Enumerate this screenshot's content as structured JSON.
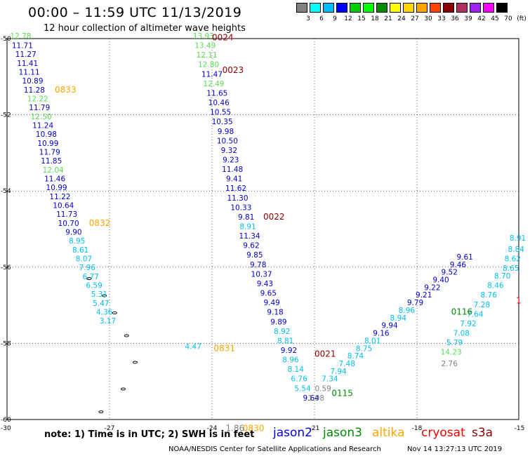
{
  "title": "00:00 – 11:59 UTC 11/13/2019",
  "subtitle": "12 hour collection of altimeter wave heights",
  "colorbar": {
    "unit": "(ft)",
    "labels": [
      "3",
      "6",
      "9",
      "12",
      "15",
      "18",
      "21",
      "24",
      "27",
      "30",
      "33",
      "36",
      "39",
      "42",
      "45",
      "70"
    ],
    "colors": [
      "#808080",
      "#00ffff",
      "#00bfff",
      "#0000ff",
      "#00cd00",
      "#00ff00",
      "#008b00",
      "#ffff00",
      "#ffd700",
      "#ffa500",
      "#ff4500",
      "#8b0000",
      "#b03060",
      "#a020f0",
      "#ff00ff",
      "#000000"
    ]
  },
  "note": "note:  1) Time is in UTC;  2) SWH is in feet",
  "satellites": [
    {
      "name": "jason2",
      "color": "#0000ee"
    },
    {
      "name": "jason3",
      "color": "#008b00"
    },
    {
      "name": "altika",
      "color": "#ffa500"
    },
    {
      "name": "cryosat",
      "color": "#ee0000"
    },
    {
      "name": "s3a",
      "color": "#8b0000"
    }
  ],
  "credit": "NOAA/NESDIS Center for Satellite Applications and Research",
  "timestamp": "Nov 14 13:27:13 UTC 2019",
  "chart_data": {
    "type": "scatter",
    "xlim": [
      -30,
      -15
    ],
    "ylim": [
      -60,
      -50
    ],
    "x_ticks": [
      "-27",
      "-24",
      "-21",
      "-18",
      "-15"
    ],
    "y_ticks": [
      "-50",
      "-52",
      "-54",
      "-56",
      "-58",
      "-60"
    ],
    "corner_label": "-30",
    "grid": true,
    "coast_color": "#000000",
    "series": [
      {
        "name": "jason2",
        "points": [
          {
            "x": -29.6,
            "y": -50.0,
            "v": 12.78,
            "c": "#55dd55"
          },
          {
            "x": -29.55,
            "y": -50.25,
            "v": 11.71,
            "c": "#0000cc"
          },
          {
            "x": -29.45,
            "y": -50.48,
            "v": 11.27,
            "c": "#0000cc"
          },
          {
            "x": -29.4,
            "y": -50.72,
            "v": 11.41,
            "c": "#0000cc"
          },
          {
            "x": -29.35,
            "y": -50.95,
            "v": 11.11,
            "c": "#0000cc"
          },
          {
            "x": -29.25,
            "y": -51.18,
            "v": 10.89,
            "c": "#0000cc"
          },
          {
            "x": -29.2,
            "y": -51.42,
            "v": 11.28,
            "c": "#0000cc"
          },
          {
            "x": -29.1,
            "y": -51.65,
            "v": 12.22,
            "c": "#55dd55"
          },
          {
            "x": -29.05,
            "y": -51.88,
            "v": 11.79,
            "c": "#0000cc"
          },
          {
            "x": -29.0,
            "y": -52.12,
            "v": 12.5,
            "c": "#55dd55"
          },
          {
            "x": -28.95,
            "y": -52.35,
            "v": 11.24,
            "c": "#0000cc"
          },
          {
            "x": -28.85,
            "y": -52.58,
            "v": 10.98,
            "c": "#0000cc"
          },
          {
            "x": -28.8,
            "y": -52.82,
            "v": 10.99,
            "c": "#0000cc"
          },
          {
            "x": -28.75,
            "y": -53.05,
            "v": 11.79,
            "c": "#0000cc"
          },
          {
            "x": -28.7,
            "y": -53.28,
            "v": 11.85,
            "c": "#0000cc"
          },
          {
            "x": -28.65,
            "y": -53.52,
            "v": 12.04,
            "c": "#55dd55"
          },
          {
            "x": -28.6,
            "y": -53.75,
            "v": 11.46,
            "c": "#0000cc"
          },
          {
            "x": -28.55,
            "y": -53.98,
            "v": 10.99,
            "c": "#0000cc"
          },
          {
            "x": -28.45,
            "y": -54.22,
            "v": 11.22,
            "c": "#0000cc"
          },
          {
            "x": -28.35,
            "y": -54.45,
            "v": 10.64,
            "c": "#0000cc"
          },
          {
            "x": -28.25,
            "y": -54.68,
            "v": 11.73,
            "c": "#0000cc"
          },
          {
            "x": -28.2,
            "y": -54.92,
            "v": 10.7,
            "c": "#0000cc"
          },
          {
            "x": -28.05,
            "y": -55.15,
            "v": 9.9,
            "c": "#0000cc"
          },
          {
            "x": -27.95,
            "y": -55.38,
            "v": 8.95,
            "c": "#00bfee"
          },
          {
            "x": -27.85,
            "y": -55.62,
            "v": 8.61,
            "c": "#00bfee"
          },
          {
            "x": -27.75,
            "y": -55.85,
            "v": 8.07,
            "c": "#00bfee"
          },
          {
            "x": -27.65,
            "y": -56.08,
            "v": 7.96,
            "c": "#00bfee"
          },
          {
            "x": -27.55,
            "y": -56.32,
            "v": 6.77,
            "c": "#00bfee"
          },
          {
            "x": -27.45,
            "y": -56.55,
            "v": 6.59,
            "c": "#00bfee"
          },
          {
            "x": -27.3,
            "y": -56.78,
            "v": 5.31,
            "c": "#00bfee"
          },
          {
            "x": -27.25,
            "y": -57.02,
            "v": 5.47,
            "c": "#00bfee"
          },
          {
            "x": -27.15,
            "y": -57.25,
            "v": 4.36,
            "c": "#00bfee"
          },
          {
            "x": -27.05,
            "y": -57.48,
            "v": 3.17,
            "c": "#00bfee"
          },
          {
            "x": -24.55,
            "y": -58.15,
            "v": 4.47,
            "c": "#00bfee"
          },
          {
            "x": -24.25,
            "y": -50.0,
            "v": 13.93,
            "c": "#55dd55"
          },
          {
            "x": -24.2,
            "y": -50.25,
            "v": 13.49,
            "c": "#55dd55"
          },
          {
            "x": -24.15,
            "y": -50.5,
            "v": 12.11,
            "c": "#55dd55"
          },
          {
            "x": -24.1,
            "y": -50.75,
            "v": 12.8,
            "c": "#55dd55"
          },
          {
            "x": -24.0,
            "y": -51.0,
            "v": 11.47,
            "c": "#0000cc"
          },
          {
            "x": -23.95,
            "y": -51.25,
            "v": 12.49,
            "c": "#55dd55"
          },
          {
            "x": -23.85,
            "y": -51.5,
            "v": 11.65,
            "c": "#0000cc"
          },
          {
            "x": -23.8,
            "y": -51.75,
            "v": 10.46,
            "c": "#0000cc"
          },
          {
            "x": -23.75,
            "y": -52.0,
            "v": 10.55,
            "c": "#0000cc"
          },
          {
            "x": -23.7,
            "y": -52.25,
            "v": 10.35,
            "c": "#0000cc"
          },
          {
            "x": -23.6,
            "y": -52.5,
            "v": 9.98,
            "c": "#0000cc"
          },
          {
            "x": -23.55,
            "y": -52.75,
            "v": 10.5,
            "c": "#0000cc"
          },
          {
            "x": -23.5,
            "y": -53.0,
            "v": 9.32,
            "c": "#0000cc"
          },
          {
            "x": -23.45,
            "y": -53.25,
            "v": 9.23,
            "c": "#0000cc"
          },
          {
            "x": -23.4,
            "y": -53.5,
            "v": 11.48,
            "c": "#0000cc"
          },
          {
            "x": -23.35,
            "y": -53.75,
            "v": 9.41,
            "c": "#0000cc"
          },
          {
            "x": -23.3,
            "y": -54.0,
            "v": 11.62,
            "c": "#0000cc"
          },
          {
            "x": -23.25,
            "y": -54.25,
            "v": 11.3,
            "c": "#0000cc"
          },
          {
            "x": -23.15,
            "y": -54.5,
            "v": 10.33,
            "c": "#0000cc"
          },
          {
            "x": -23.0,
            "y": -54.75,
            "v": 9.81,
            "c": "#0000cc"
          },
          {
            "x": -22.95,
            "y": -55.0,
            "v": 8.91,
            "c": "#00bfee"
          },
          {
            "x": -22.9,
            "y": -55.25,
            "v": 11.34,
            "c": "#0000cc"
          },
          {
            "x": -22.85,
            "y": -55.5,
            "v": 9.62,
            "c": "#0000cc"
          },
          {
            "x": -22.75,
            "y": -55.75,
            "v": 9.85,
            "c": "#0000cc"
          },
          {
            "x": -22.65,
            "y": -56.0,
            "v": 9.78,
            "c": "#0000cc"
          },
          {
            "x": -22.55,
            "y": -56.25,
            "v": 10.37,
            "c": "#0000cc"
          },
          {
            "x": -22.45,
            "y": -56.5,
            "v": 9.43,
            "c": "#0000cc"
          },
          {
            "x": -22.35,
            "y": -56.75,
            "v": 9.65,
            "c": "#0000cc"
          },
          {
            "x": -22.25,
            "y": -57.0,
            "v": 9.49,
            "c": "#0000cc"
          },
          {
            "x": -22.15,
            "y": -57.25,
            "v": 9.18,
            "c": "#0000cc"
          },
          {
            "x": -22.05,
            "y": -57.5,
            "v": 9.89,
            "c": "#0000cc"
          },
          {
            "x": -21.95,
            "y": -57.75,
            "v": 8.92,
            "c": "#00bfee"
          },
          {
            "x": -21.85,
            "y": -58.0,
            "v": 8.81,
            "c": "#00bfee"
          },
          {
            "x": -21.75,
            "y": -58.25,
            "v": 9.92,
            "c": "#0000cc"
          },
          {
            "x": -21.7,
            "y": -58.5,
            "v": 8.96,
            "c": "#00bfee"
          },
          {
            "x": -21.55,
            "y": -58.75,
            "v": 8.14,
            "c": "#00bfee"
          },
          {
            "x": -21.45,
            "y": -59.0,
            "v": 6.76,
            "c": "#00bfee"
          },
          {
            "x": -21.35,
            "y": -59.25,
            "v": 5.54,
            "c": "#00bfee"
          },
          {
            "x": -21.1,
            "y": -59.5,
            "v": 9.64,
            "c": "#0000cc"
          }
        ]
      },
      {
        "name": "jason3",
        "points": [
          {
            "x": -20.75,
            "y": -59.25,
            "v": 0.59,
            "c": "#808080"
          },
          {
            "x": -20.95,
            "y": -59.5,
            "v": 1.98,
            "c": "#808080"
          },
          {
            "x": -20.55,
            "y": -59.0,
            "v": 7.34,
            "c": "#00bfee"
          },
          {
            "x": -20.3,
            "y": -58.8,
            "v": 7.94,
            "c": "#00bfee"
          },
          {
            "x": -20.05,
            "y": -58.6,
            "v": 7.48,
            "c": "#00bfee"
          },
          {
            "x": -19.8,
            "y": -58.4,
            "v": 8.74,
            "c": "#00bfee"
          },
          {
            "x": -19.55,
            "y": -58.2,
            "v": 8.75,
            "c": "#00bfee"
          },
          {
            "x": -19.3,
            "y": -58.0,
            "v": 8.01,
            "c": "#00bfee"
          },
          {
            "x": -19.05,
            "y": -57.8,
            "v": 9.16,
            "c": "#0000cc"
          },
          {
            "x": -18.8,
            "y": -57.6,
            "v": 9.94,
            "c": "#0000cc"
          },
          {
            "x": -18.55,
            "y": -57.4,
            "v": 8.94,
            "c": "#00bfee"
          },
          {
            "x": -18.3,
            "y": -57.2,
            "v": 8.96,
            "c": "#00bfee"
          },
          {
            "x": -18.05,
            "y": -57.0,
            "v": 9.79,
            "c": "#0000cc"
          },
          {
            "x": -17.8,
            "y": -56.8,
            "v": 9.21,
            "c": "#0000cc"
          },
          {
            "x": -17.55,
            "y": -56.6,
            "v": 9.22,
            "c": "#0000cc"
          },
          {
            "x": -17.3,
            "y": -56.4,
            "v": 9.4,
            "c": "#0000cc"
          },
          {
            "x": -17.05,
            "y": -56.2,
            "v": 9.52,
            "c": "#0000cc"
          },
          {
            "x": -16.8,
            "y": -56.0,
            "v": 9.46,
            "c": "#0000cc"
          },
          {
            "x": -16.6,
            "y": -55.8,
            "v": 9.61,
            "c": "#0000cc"
          },
          {
            "x": -15.05,
            "y": -55.3,
            "v": 8.91,
            "c": "#00bfee"
          },
          {
            "x": -15.1,
            "y": -55.6,
            "v": 8.84,
            "c": "#00bfee"
          },
          {
            "x": -15.2,
            "y": -55.85,
            "v": 8.62,
            "c": "#00bfee"
          },
          {
            "x": -15.25,
            "y": -56.1,
            "v": 8.65,
            "c": "#00bfee"
          },
          {
            "x": -15.5,
            "y": -56.3,
            "v": 8.7,
            "c": "#00bfee"
          },
          {
            "x": -15.7,
            "y": -56.55,
            "v": 8.46,
            "c": "#00bfee"
          },
          {
            "x": -15.9,
            "y": -56.8,
            "v": 8.76,
            "c": "#00bfee"
          },
          {
            "x": -16.1,
            "y": -57.05,
            "v": 7.28,
            "c": "#00bfee"
          },
          {
            "x": -16.3,
            "y": -57.3,
            "v": 7.64,
            "c": "#00bfee"
          },
          {
            "x": -16.5,
            "y": -57.55,
            "v": 7.92,
            "c": "#00bfee"
          },
          {
            "x": -16.7,
            "y": -57.8,
            "v": 7.08,
            "c": "#00bfee"
          },
          {
            "x": -16.9,
            "y": -58.05,
            "v": 5.79,
            "c": "#00bfee"
          },
          {
            "x": -17.0,
            "y": -58.3,
            "v": 14.23,
            "c": "#55dd55"
          },
          {
            "x": -17.05,
            "y": -58.6,
            "v": 2.76,
            "c": "#808080"
          }
        ]
      }
    ],
    "pass_labels": [
      {
        "text": "0024",
        "x": -24.0,
        "y": -50.05,
        "c": "#8b0000"
      },
      {
        "text": "0023",
        "x": -23.7,
        "y": -50.9,
        "c": "#8b0000"
      },
      {
        "text": "0833",
        "x": -28.6,
        "y": -51.42,
        "c": "#ffa500"
      },
      {
        "text": "0832",
        "x": -27.6,
        "y": -54.92,
        "c": "#ffa500"
      },
      {
        "text": "0022",
        "x": -22.5,
        "y": -54.75,
        "c": "#8b0000"
      },
      {
        "text": "0021",
        "x": -21.0,
        "y": -58.35,
        "c": "#8b0000"
      },
      {
        "text": "0831",
        "x": -23.95,
        "y": -58.2,
        "c": "#ffa500"
      },
      {
        "text": "0115",
        "x": -20.5,
        "y": -59.38,
        "c": "#008b00"
      },
      {
        "text": "0116",
        "x": -17.0,
        "y": -57.25,
        "c": "#008b00"
      },
      {
        "text": "0830",
        "x": -23.1,
        "y": -60.3,
        "c": "#ffa500"
      },
      {
        "text": "1.86",
        "x": -23.6,
        "y": -60.3,
        "c": "#808080"
      },
      {
        "text": "1",
        "x": -15.1,
        "y": -56.95,
        "c": "#ee0000"
      }
    ]
  }
}
